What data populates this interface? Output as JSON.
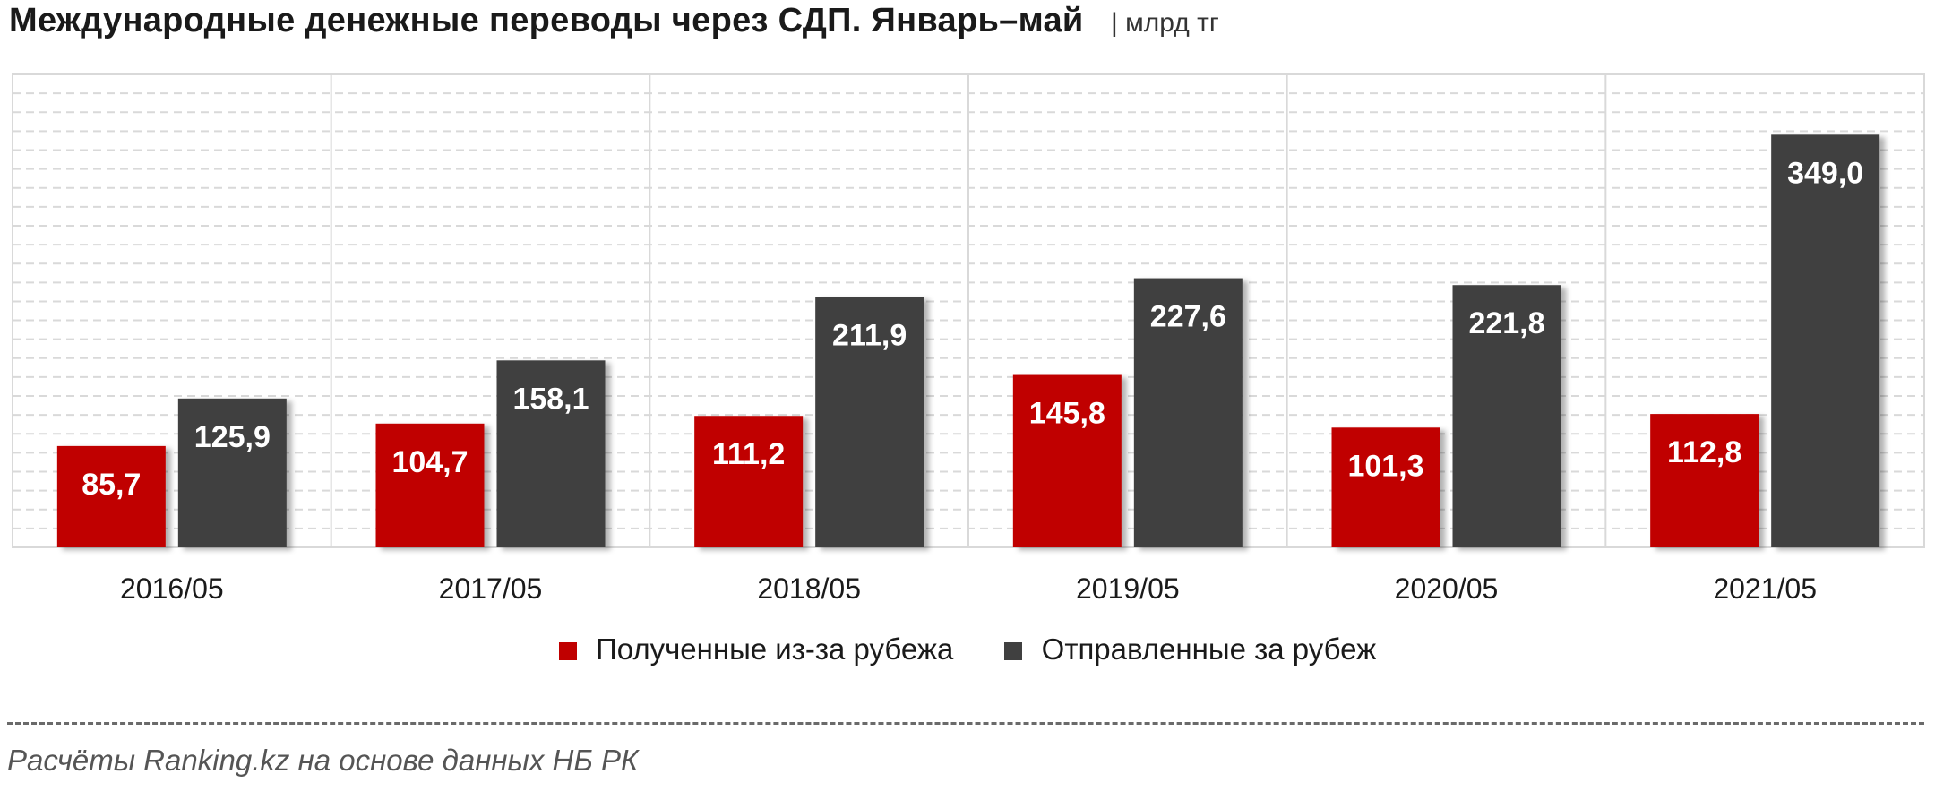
{
  "chart_data": {
    "type": "bar",
    "title": "Международные денежные переводы через СДП. Январь–май",
    "unit": "| млрд тг",
    "categories": [
      "2016/05",
      "2017/05",
      "2018/05",
      "2019/05",
      "2020/05",
      "2021/05"
    ],
    "series": [
      {
        "name": "Полученные из-за рубежа",
        "color": "#c00000",
        "values": [
          85.7,
          104.7,
          111.2,
          145.8,
          101.3,
          112.8
        ],
        "labels": [
          "85,7",
          "104,7",
          "111,2",
          "145,8",
          "101,3",
          "112,8"
        ]
      },
      {
        "name": "Отправленные за рубеж",
        "color": "#404040",
        "values": [
          125.9,
          158.1,
          211.9,
          227.6,
          221.8,
          349.0
        ],
        "labels": [
          "125,9",
          "158,1",
          "211,9",
          "227,6",
          "221,8",
          "349,0"
        ]
      }
    ],
    "ylim": [
      0,
      400
    ],
    "grid": true,
    "legend_position": "bottom-center"
  },
  "source_note": "Расчёты Ranking.kz на основе данных НБ РК"
}
